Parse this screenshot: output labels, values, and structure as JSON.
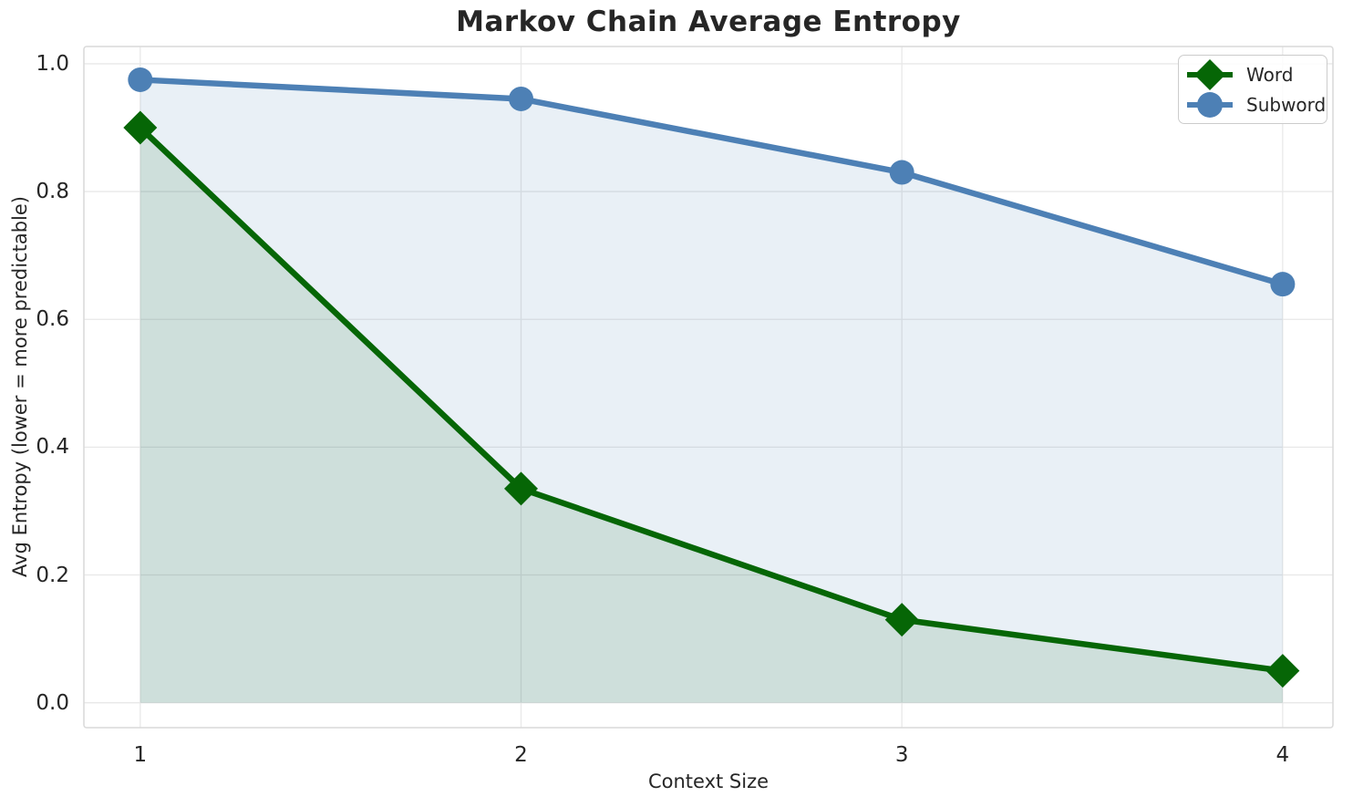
{
  "chart_data": {
    "type": "line",
    "title": "Markov Chain Average Entropy",
    "xlabel": "Context Size",
    "ylabel": "Avg Entropy (lower = more predictable)",
    "x": [
      1,
      2,
      3,
      4
    ],
    "series": [
      {
        "name": "Word",
        "color": "#066606",
        "marker": "diamond",
        "values": [
          0.9,
          0.335,
          0.13,
          0.05
        ],
        "area_fill": true
      },
      {
        "name": "Subword",
        "color": "#4d80b5",
        "marker": "circle",
        "values": [
          0.975,
          0.945,
          0.83,
          0.655
        ],
        "area_fill": true
      }
    ],
    "xticks": [
      "1",
      "2",
      "3",
      "4"
    ],
    "yticks": [
      "0.0",
      "0.2",
      "0.4",
      "0.6",
      "0.8",
      "1.0"
    ],
    "xlim": [
      0.852,
      4.132
    ],
    "ylim": [
      -0.039,
      1.027
    ],
    "grid": true,
    "legend_location": "upper right",
    "style": {
      "grid_color": "#e8e8e8",
      "border_color": "#d9d9d9",
      "text_color": "#262626",
      "fill_opacity": 0.12,
      "line_width": 6.5,
      "background": "#ffffff"
    }
  }
}
